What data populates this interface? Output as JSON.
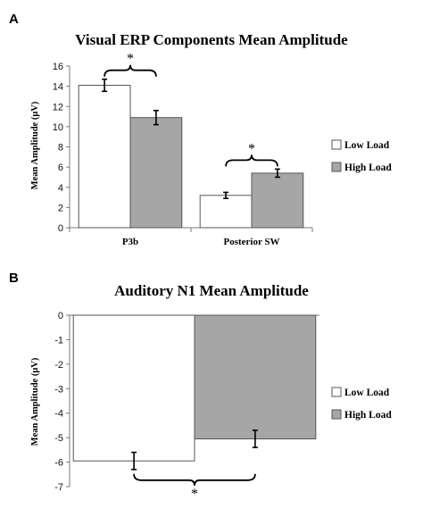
{
  "panels": [
    {
      "letter": "A"
    },
    {
      "letter": "B"
    }
  ],
  "chart_data": [
    {
      "type": "bar",
      "title": "Visual ERP Components Mean Amplitude",
      "ylabel": "Mean Amplitude (μV)",
      "xlabel": "",
      "ylim": [
        0,
        16
      ],
      "yticks": [
        "0",
        "2",
        "4",
        "6",
        "8",
        "10",
        "12",
        "14",
        "16"
      ],
      "grid": false,
      "legend": "right",
      "categories": [
        "P3b",
        "Posterior SW"
      ],
      "series": [
        {
          "name": "Low Load",
          "color": "#ffffff",
          "values": [
            14.1,
            3.2
          ],
          "errors": [
            0.6,
            0.3
          ]
        },
        {
          "name": "High Load",
          "color": "#a6a6a6",
          "values": [
            10.9,
            5.4
          ],
          "errors": [
            0.7,
            0.4
          ]
        }
      ],
      "significance": [
        {
          "category": 0,
          "label": "*"
        },
        {
          "category": 1,
          "label": "*"
        }
      ]
    },
    {
      "type": "bar",
      "title": "Auditory N1 Mean Amplitude",
      "ylabel": "Mean Amplitude (μV)",
      "xlabel": "",
      "ylim": [
        -7,
        0
      ],
      "yticks": [
        "0",
        "-1",
        "-2",
        "-3",
        "-4",
        "-5",
        "-6",
        "-7"
      ],
      "grid": false,
      "legend": "right",
      "categories": [
        ""
      ],
      "series": [
        {
          "name": "Low Load",
          "color": "#ffffff",
          "values": [
            -5.95
          ],
          "errors": [
            0.35
          ]
        },
        {
          "name": "High Load",
          "color": "#a6a6a6",
          "values": [
            -5.05
          ],
          "errors": [
            0.35
          ]
        }
      ],
      "significance": [
        {
          "category": 0,
          "label": "*"
        }
      ]
    }
  ]
}
